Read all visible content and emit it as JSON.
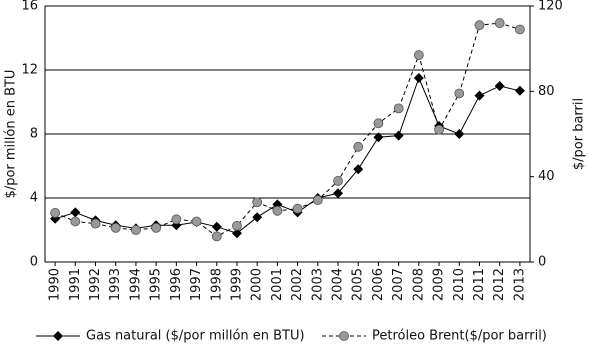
{
  "chart_data": {
    "type": "line",
    "y_label": "$/por millón en BTU",
    "y2_label": "$/por barril",
    "categories": [
      "1990",
      "1991",
      "1992",
      "1993",
      "1994",
      "1995",
      "1996",
      "1997",
      "1998",
      "1999",
      "2000",
      "2001",
      "2002",
      "2003",
      "2004",
      "2005",
      "2006",
      "2007",
      "2008",
      "2009",
      "2010",
      "2011",
      "2012",
      "2013"
    ],
    "series": [
      {
        "name": "Gas natural  ($/por millón en BTU)",
        "color": "#000000",
        "marker": "diamond",
        "dashed": false,
        "values": [
          2.7,
          3.1,
          2.6,
          2.3,
          2.1,
          2.3,
          2.3,
          2.5,
          2.2,
          1.8,
          2.8,
          3.6,
          3.1,
          4.0,
          4.3,
          5.8,
          7.8,
          7.9,
          11.5,
          8.5,
          8.0,
          10.4,
          11.0,
          10.7
        ]
      },
      {
        "name": "Petróleo Brent($/por barril)",
        "color": "#999999",
        "marker": "circle",
        "dashed": true,
        "axis": "y2",
        "values": [
          23,
          19,
          18,
          16,
          15,
          16,
          20,
          19,
          12,
          17,
          28,
          24,
          25,
          29,
          38,
          54,
          65,
          72,
          97,
          62,
          79,
          111,
          112,
          109
        ]
      }
    ],
    "ylim": [
      0,
      16
    ],
    "yticks": [
      0,
      4,
      8,
      12,
      16
    ],
    "y2lim": [
      0,
      120
    ],
    "y2ticks": [
      0,
      40,
      80,
      120
    ],
    "grid": true,
    "legend": "bottom"
  }
}
